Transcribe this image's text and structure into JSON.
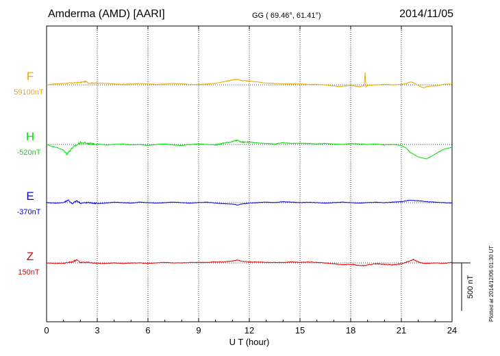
{
  "header": {
    "title": "Amderma (AMD)  [AARI]",
    "coords": "GG ( 69.46°,  61.41°)",
    "date": "2014/11/05"
  },
  "footer": {
    "plotted": "Plotted at 2014/12/06 01:30 UT"
  },
  "chart_data": {
    "type": "line",
    "xlabel": "U T (hour)",
    "xlim": [
      0,
      24
    ],
    "xticks": [
      0,
      3,
      6,
      9,
      12,
      15,
      18,
      21,
      24
    ],
    "vertical_grid": [
      3,
      6,
      9,
      12,
      15,
      18,
      21
    ],
    "grid": "dotted",
    "scale_bar": {
      "label": "500 nT",
      "value_nT": 500
    },
    "colors": {
      "F": "#f0a800",
      "H": "#00e000",
      "E": "#0000e6",
      "Z": "#e60000"
    },
    "series": [
      {
        "name": "F",
        "baseline_label": "59100nT",
        "color": "#f0a800",
        "x": [
          0,
          0.5,
          1,
          1.5,
          2,
          2.3,
          2.5,
          3,
          3.5,
          4,
          4.5,
          5,
          5.5,
          6,
          6.5,
          7,
          7.5,
          8,
          8.5,
          9,
          9.5,
          10,
          10.5,
          11,
          11.3,
          11.5,
          12,
          12.5,
          13,
          13.5,
          14,
          14.5,
          15,
          15.5,
          16,
          16.5,
          17,
          17.3,
          17.5,
          18,
          18.5,
          18.8,
          18.85,
          18.9,
          19,
          19.5,
          20,
          20.5,
          21,
          21.3,
          21.5,
          21.7,
          22,
          22.3,
          22.5,
          23,
          23.5,
          24
        ],
        "values": [
          0,
          10,
          15,
          20,
          25,
          35,
          20,
          20,
          15,
          10,
          5,
          10,
          15,
          10,
          5,
          10,
          15,
          10,
          5,
          5,
          10,
          15,
          35,
          50,
          60,
          45,
          40,
          30,
          20,
          15,
          10,
          10,
          10,
          5,
          5,
          0,
          -10,
          -20,
          -15,
          -5,
          -20,
          -10,
          130,
          -20,
          -5,
          0,
          5,
          0,
          5,
          15,
          30,
          25,
          -5,
          -30,
          -20,
          -10,
          5,
          10
        ]
      },
      {
        "name": "H",
        "baseline_label": "-520nT",
        "color": "#00e000",
        "x": [
          0,
          0.3,
          0.6,
          1,
          1.2,
          1.5,
          2,
          2.5,
          3,
          3.5,
          4,
          4.5,
          5,
          5.5,
          6,
          6.5,
          7,
          7.5,
          8,
          8.5,
          9,
          9.5,
          10,
          10.5,
          11,
          11.3,
          11.5,
          12,
          12.5,
          13,
          13.5,
          14,
          14.5,
          15,
          15.5,
          16,
          16.5,
          17,
          17.5,
          18,
          18.5,
          19,
          19.5,
          20,
          20.5,
          21,
          21.3,
          21.5,
          22,
          22.5,
          23,
          23.5,
          24
        ],
        "values": [
          0,
          -20,
          -30,
          -60,
          -100,
          -40,
          20,
          10,
          5,
          -5,
          0,
          5,
          -5,
          0,
          -10,
          0,
          5,
          -5,
          -10,
          0,
          5,
          0,
          -5,
          15,
          30,
          45,
          25,
          25,
          15,
          10,
          5,
          20,
          10,
          15,
          10,
          5,
          10,
          5,
          0,
          10,
          5,
          0,
          5,
          -5,
          0,
          -10,
          -40,
          -80,
          -130,
          -150,
          -100,
          -50,
          -30
        ]
      },
      {
        "name": "E",
        "baseline_label": "-370nT",
        "color": "#0000e6",
        "x": [
          0,
          0.5,
          1,
          1.3,
          1.5,
          1.8,
          2,
          2.5,
          3,
          3.5,
          4,
          4.5,
          5,
          5.5,
          6,
          6.5,
          7,
          7.5,
          8,
          8.5,
          9,
          9.5,
          10,
          10.5,
          11,
          11.3,
          11.5,
          12,
          12.5,
          13,
          13.5,
          14,
          14.5,
          15,
          15.5,
          16,
          16.5,
          17,
          17.5,
          18,
          18.5,
          19,
          19.5,
          20,
          20.5,
          21,
          21.5,
          22,
          22.5,
          23,
          23.5,
          24
        ],
        "values": [
          0,
          -5,
          0,
          25,
          -10,
          20,
          -5,
          0,
          -10,
          -5,
          5,
          0,
          -5,
          5,
          0,
          -5,
          0,
          5,
          0,
          -5,
          0,
          5,
          -5,
          -10,
          -15,
          -25,
          -15,
          -5,
          0,
          5,
          0,
          10,
          5,
          0,
          5,
          0,
          -5,
          0,
          5,
          0,
          -5,
          0,
          5,
          0,
          5,
          10,
          25,
          20,
          10,
          5,
          0,
          -5
        ]
      },
      {
        "name": "Z",
        "baseline_label": "150nT",
        "color": "#e60000",
        "x": [
          0,
          0.5,
          1,
          1.5,
          1.8,
          2,
          2.5,
          3,
          3.5,
          4,
          4.5,
          5,
          5.5,
          6,
          6.5,
          7,
          7.5,
          8,
          8.5,
          9,
          9.5,
          10,
          10.5,
          11,
          11.3,
          11.5,
          12,
          12.5,
          13,
          13.5,
          14,
          14.5,
          15,
          15.5,
          16,
          16.5,
          17,
          17.5,
          18,
          18.5,
          18.8,
          19,
          19.5,
          20,
          20.5,
          21,
          21.5,
          21.7,
          22,
          22.3,
          22.5,
          23,
          23.5,
          24
        ],
        "values": [
          0,
          -5,
          -5,
          10,
          30,
          5,
          5,
          -5,
          -5,
          0,
          -5,
          0,
          0,
          -5,
          0,
          5,
          0,
          0,
          5,
          5,
          5,
          10,
          10,
          20,
          30,
          20,
          10,
          10,
          5,
          5,
          5,
          10,
          5,
          10,
          5,
          0,
          -10,
          -20,
          -15,
          -25,
          -30,
          -20,
          -10,
          -15,
          -20,
          -10,
          20,
          35,
          10,
          -5,
          -5,
          0,
          -5,
          5
        ]
      }
    ]
  }
}
